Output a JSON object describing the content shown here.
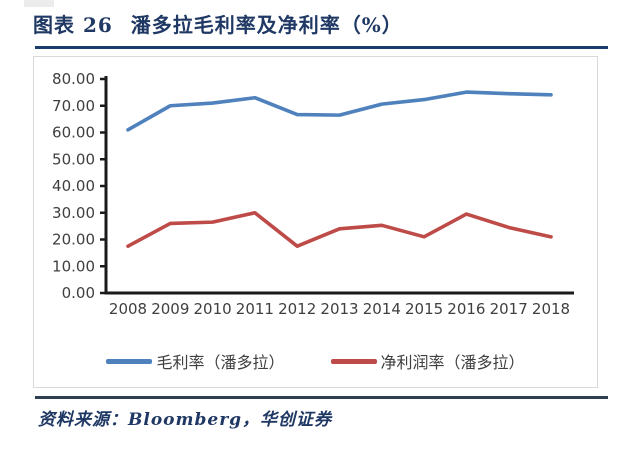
{
  "header": {
    "label": "图表 26",
    "title": "潘多拉毛利率及净利率（%）"
  },
  "footer": {
    "source": "资料来源：Bloomberg，华创证券"
  },
  "colors": {
    "accent_navy": "#1F3864",
    "title_rule": "#1D3C6E",
    "footer_rule": "#2E3F52",
    "axis_text": "#3F3F3F",
    "axis_line": "#1A1A1A",
    "box_border": "#D9D9D9",
    "series_blue": "#4F81BD",
    "series_red": "#BE4B48"
  },
  "chart_data": {
    "type": "line",
    "title": "潘多拉毛利率及净利率（%）",
    "categories": [
      "2008",
      "2009",
      "2010",
      "2011",
      "2012",
      "2013",
      "2014",
      "2015",
      "2016",
      "2017",
      "2018"
    ],
    "series": [
      {
        "name": "毛利率（潘多拉）",
        "color": "#4F81BD",
        "values": [
          61.0,
          70.0,
          71.0,
          73.0,
          66.7,
          66.5,
          70.6,
          72.3,
          75.1,
          74.5,
          74.1
        ]
      },
      {
        "name": "净利润率（潘多拉）",
        "color": "#BE4B48",
        "values": [
          17.5,
          26.0,
          26.5,
          30.0,
          17.5,
          24.0,
          25.3,
          21.0,
          29.5,
          24.5,
          21.0
        ]
      }
    ],
    "ylim": [
      0,
      80
    ],
    "ytick_labels": [
      "0.00",
      "10.00",
      "20.00",
      "30.00",
      "40.00",
      "50.00",
      "60.00",
      "70.00",
      "80.00"
    ],
    "grid": false,
    "legend_position": "bottom"
  }
}
